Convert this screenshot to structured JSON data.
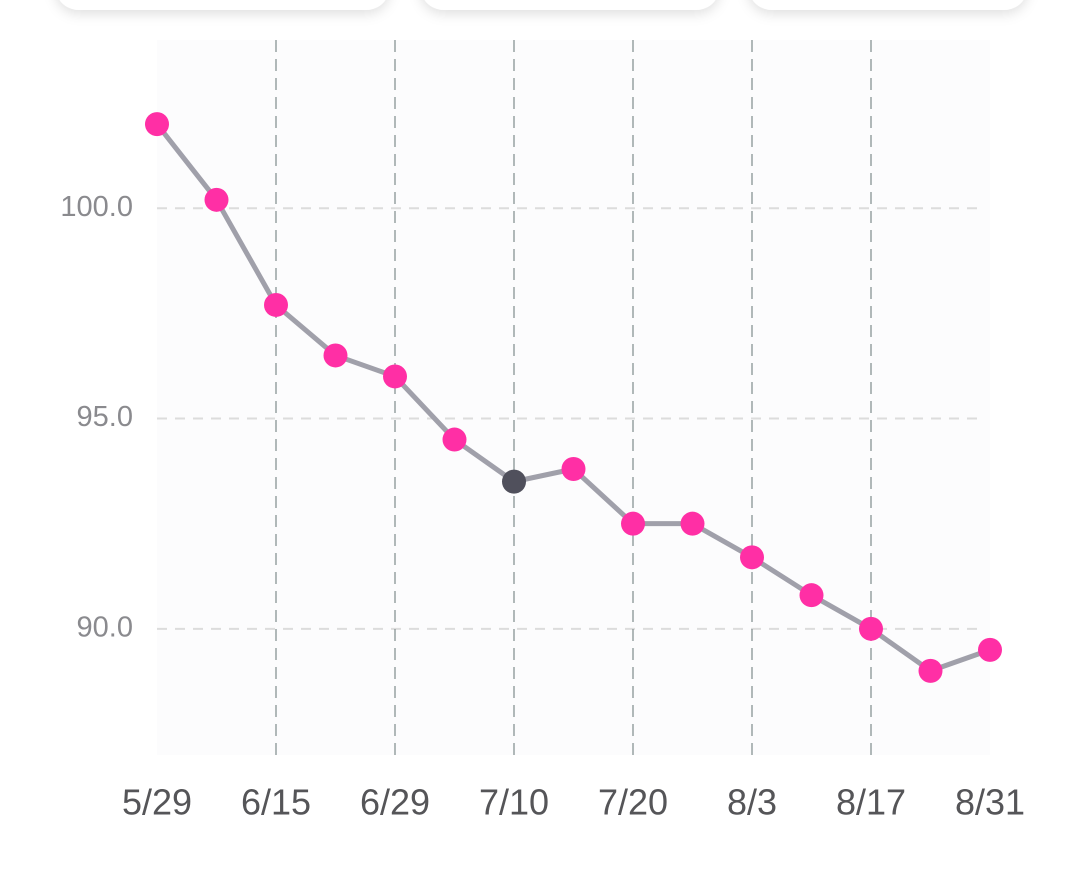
{
  "chart_data": {
    "type": "line",
    "categories": [
      "5/29",
      null,
      "6/15",
      null,
      "6/29",
      null,
      "7/10",
      null,
      "7/20",
      null,
      "8/3",
      null,
      "8/17",
      null,
      "8/31"
    ],
    "values": [
      102.0,
      100.2,
      97.7,
      96.5,
      96.0,
      94.5,
      93.5,
      93.8,
      92.5,
      92.5,
      91.7,
      90.8,
      90.0,
      89.0,
      89.5
    ],
    "color": "#ff2fa5",
    "line_color": "#a0a0aa",
    "highlight": {
      "index": 6,
      "color": "#50505c"
    },
    "ylim": [
      87,
      104
    ],
    "yticks": [
      {
        "value": 90,
        "label": "90.0"
      },
      {
        "value": 95,
        "label": "95.0"
      },
      {
        "value": 100,
        "label": "100.0"
      }
    ],
    "grid": true
  }
}
